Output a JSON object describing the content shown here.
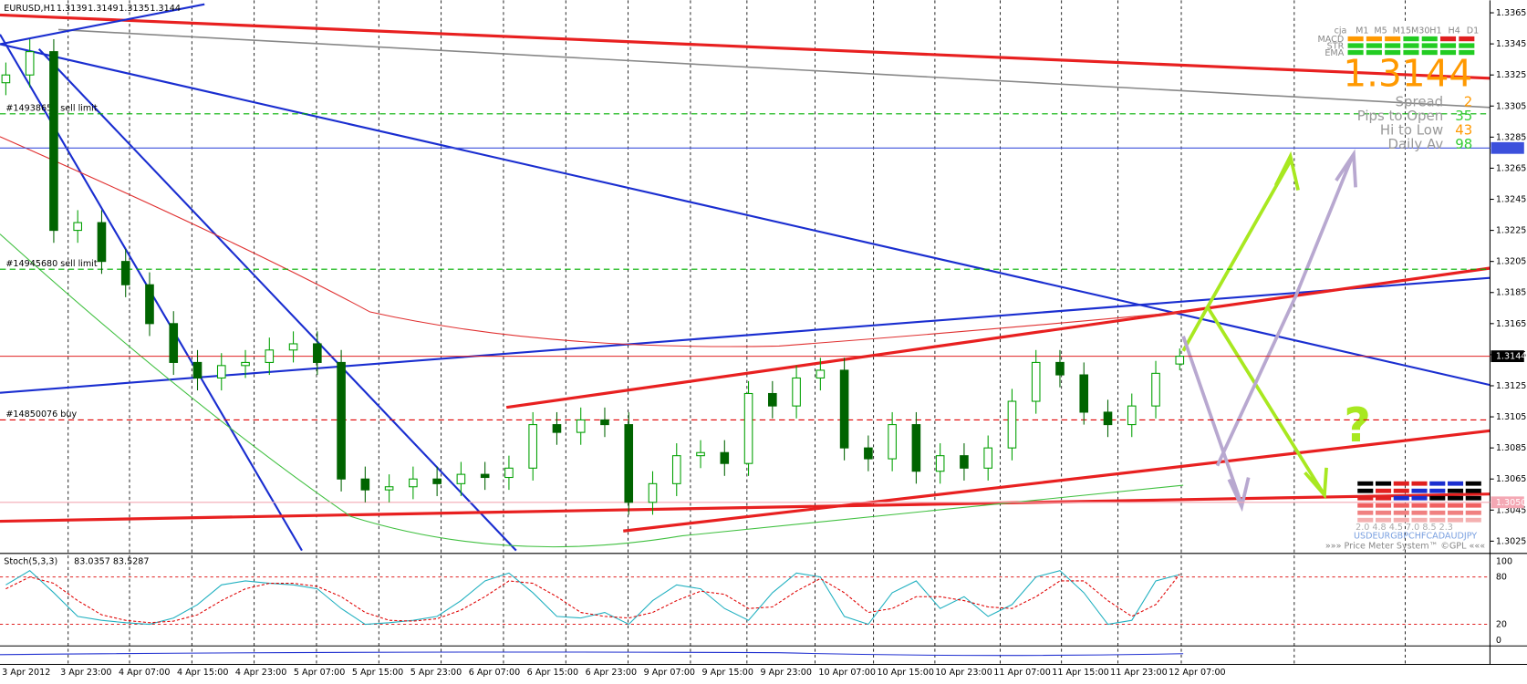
{
  "chart_data": [
    {
      "type": "candlestick",
      "symbol": "EURUSD,H1",
      "open": [
        1.332,
        1.3325,
        1.334,
        1.3225,
        1.323,
        1.3205,
        1.319,
        1.3165,
        1.314,
        1.313,
        1.3138,
        1.314,
        1.3148,
        1.3152,
        1.314,
        1.3065,
        1.3058,
        1.306,
        1.3065,
        1.3062,
        1.3068,
        1.3066,
        1.3072,
        1.31,
        1.3095,
        1.3103,
        1.31,
        1.305,
        1.3062,
        1.308,
        1.3082,
        1.3075,
        1.312,
        1.3112,
        1.313,
        1.3135,
        1.3085,
        1.3078,
        1.31,
        1.307,
        1.308,
        1.3072,
        1.3085,
        1.3115,
        1.314,
        1.3132,
        1.3108,
        1.31,
        1.3112,
        1.3139
      ],
      "high": [
        1.3333,
        1.3348,
        1.3348,
        1.3238,
        1.3238,
        1.3213,
        1.3198,
        1.3173,
        1.3148,
        1.3146,
        1.3148,
        1.3156,
        1.316,
        1.316,
        1.3148,
        1.3073,
        1.3068,
        1.3073,
        1.3073,
        1.3076,
        1.3076,
        1.308,
        1.3108,
        1.3108,
        1.3111,
        1.3111,
        1.3108,
        1.307,
        1.3088,
        1.309,
        1.309,
        1.3128,
        1.3128,
        1.3138,
        1.3143,
        1.3143,
        1.3093,
        1.3108,
        1.3108,
        1.3088,
        1.3088,
        1.3093,
        1.3123,
        1.3148,
        1.3148,
        1.314,
        1.3116,
        1.312,
        1.3141,
        1.3149
      ],
      "low": [
        1.3312,
        1.3317,
        1.3217,
        1.3217,
        1.3197,
        1.3182,
        1.3157,
        1.3132,
        1.3122,
        1.3122,
        1.313,
        1.3132,
        1.314,
        1.3132,
        1.3057,
        1.305,
        1.305,
        1.3052,
        1.3054,
        1.3054,
        1.3058,
        1.3058,
        1.3064,
        1.3087,
        1.3087,
        1.3092,
        1.3042,
        1.3042,
        1.3054,
        1.3072,
        1.3067,
        1.3067,
        1.3104,
        1.3104,
        1.3122,
        1.3077,
        1.307,
        1.307,
        1.3062,
        1.3062,
        1.3064,
        1.3064,
        1.3077,
        1.3107,
        1.3124,
        1.31,
        1.3092,
        1.3092,
        1.3104,
        1.3135
      ],
      "close": [
        1.3325,
        1.334,
        1.3225,
        1.323,
        1.3205,
        1.319,
        1.3165,
        1.314,
        1.313,
        1.3138,
        1.314,
        1.3148,
        1.3152,
        1.314,
        1.3065,
        1.3058,
        1.306,
        1.3065,
        1.3062,
        1.3068,
        1.3066,
        1.3072,
        1.31,
        1.3095,
        1.3103,
        1.31,
        1.305,
        1.3062,
        1.308,
        1.3082,
        1.3075,
        1.312,
        1.3112,
        1.313,
        1.3135,
        1.3085,
        1.3078,
        1.31,
        1.307,
        1.308,
        1.3072,
        1.3085,
        1.3115,
        1.314,
        1.3132,
        1.3108,
        1.31,
        1.3112,
        1.3133,
        1.3144
      ],
      "up_color": "#00a000",
      "down_color": "#006400",
      "ylim": [
        1.3019,
        1.3373
      ],
      "yticks": [
        1.3025,
        1.3045,
        1.3065,
        1.3085,
        1.3105,
        1.3125,
        1.3145,
        1.3165,
        1.3185,
        1.3205,
        1.3225,
        1.3245,
        1.3265,
        1.3285,
        1.3305,
        1.3325,
        1.3345,
        1.3365
      ],
      "xticks": [
        "3 Apr 2012",
        "3 Apr 23:00",
        "4 Apr 07:00",
        "4 Apr 15:00",
        "4 Apr 23:00",
        "5 Apr 07:00",
        "5 Apr 15:00",
        "5 Apr 23:00",
        "6 Apr 07:00",
        "6 Apr 15:00",
        "6 Apr 23:00",
        "9 Apr 07:00",
        "9 Apr 15:00",
        "9 Apr 23:00",
        "10 Apr 07:00",
        "10 Apr 15:00",
        "10 Apr 23:00",
        "11 Apr 07:00",
        "11 Apr 15:00",
        "11 Apr 23:00",
        "12 Apr 07:00"
      ],
      "levels": [
        {
          "value": 1.3278,
          "color": "#3c50dc"
        },
        {
          "value": 1.305,
          "label": "1.3050",
          "color": "#f4a8b4"
        }
      ],
      "orders": [
        {
          "label": "#14938650 sell limit",
          "value": 1.33,
          "color": "#00b000"
        },
        {
          "label": "#14945680 sell limit",
          "value": 1.32,
          "color": "#00b000"
        },
        {
          "label": "#14850076 buy",
          "value": 1.3103,
          "color": "#e00000"
        }
      ]
    },
    {
      "type": "line",
      "title": "Stoch(5,3,3)",
      "ylim": [
        0,
        100
      ],
      "yticks": [
        0,
        20,
        80,
        100
      ],
      "series": [
        {
          "color": "#20b0c0",
          "values": [
            70,
            88,
            60,
            30,
            25,
            22,
            20,
            28,
            45,
            70,
            75,
            72,
            70,
            65,
            40,
            20,
            22,
            25,
            30,
            50,
            75,
            85,
            60,
            30,
            28,
            35,
            20,
            50,
            70,
            65,
            40,
            25,
            60,
            85,
            80,
            30,
            20,
            60,
            75,
            40,
            55,
            30,
            45,
            80,
            88,
            60,
            20,
            25,
            75,
            83.0357
          ]
        },
        {
          "color": "#e00000",
          "values": [
            65,
            80,
            72,
            50,
            32,
            25,
            22,
            24,
            32,
            50,
            65,
            72,
            72,
            68,
            55,
            35,
            25,
            24,
            27,
            38,
            55,
            75,
            72,
            55,
            35,
            30,
            28,
            35,
            50,
            62,
            58,
            40,
            42,
            62,
            78,
            60,
            35,
            40,
            55,
            55,
            50,
            42,
            40,
            55,
            75,
            75,
            50,
            30,
            45,
            83.5287
          ]
        }
      ]
    }
  ],
  "info_panel": {
    "title": "cja",
    "timeframes": [
      "M1",
      "M5",
      "M15",
      "M30",
      "H1",
      "H4",
      "D1"
    ],
    "rows": [
      "MACD",
      "STR",
      "EMA"
    ],
    "stats": [
      {
        "label": "Spread",
        "value": 2,
        "color": "#ff9900"
      },
      {
        "label": "Pips to Open",
        "value": 35,
        "color": "#33cc33"
      },
      {
        "label": "Hi to Low",
        "value": 43,
        "color": "#ff9900"
      },
      {
        "label": "Daily Av",
        "value": 98,
        "color": "#33cc33"
      }
    ]
  },
  "price_meter": {
    "strength": "2.0  4.8  4.5  7.0  8.5  2.3",
    "currencies": "USDEURGBPCHFCADAUDJPY",
    "footer": "»»» Price Meter System™ ©GPL «««"
  },
  "annotation": "?"
}
